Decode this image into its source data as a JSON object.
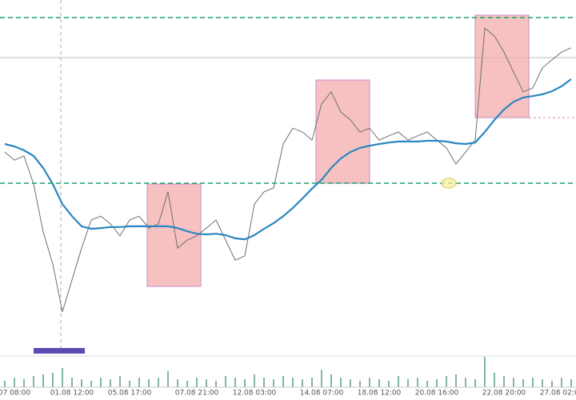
{
  "chart_data": {
    "type": "line",
    "categories": [
      null,
      "07 08:00",
      null,
      null,
      null,
      null,
      null,
      "01.08 12:00",
      null,
      null,
      null,
      null,
      null,
      "05.08 17:00",
      null,
      null,
      null,
      null,
      null,
      null,
      "07.08 21:00",
      null,
      null,
      null,
      null,
      null,
      "12.08 03:00",
      null,
      null,
      null,
      null,
      null,
      null,
      "14.08 07:00",
      null,
      null,
      null,
      null,
      null,
      "18.08 12:00",
      null,
      null,
      null,
      null,
      null,
      "20.08 16:00",
      null,
      null,
      null,
      null,
      null,
      null,
      "22.08 20:00",
      null,
      null,
      null,
      null,
      null,
      "27.08 02:00",
      null
    ],
    "series": [
      {
        "color": "#6f6f6f",
        "values": [
          56.8,
          54.5,
          55.7,
          47.7,
          34.1,
          25,
          11.4,
          20.5,
          29.5,
          37.5,
          38.6,
          36.4,
          33,
          37.5,
          38.6,
          35.2,
          36.4,
          45.5,
          29.5,
          31.8,
          33,
          35.2,
          37.5,
          31.8,
          26.1,
          27.3,
          42,
          45.5,
          46.6,
          59.1,
          63.6,
          62.5,
          60.2,
          70.5,
          73.9,
          68.2,
          65.9,
          62.5,
          63.6,
          60.2,
          61.4,
          62.5,
          60.2,
          61.4,
          62.5,
          60.2,
          58,
          53.4,
          56.8,
          60.2,
          92,
          89.8,
          85.2,
          79.5,
          73.9,
          75,
          80.7,
          83,
          85.2,
          86.4
        ]
      },
      {
        "color": "#2a86c0",
        "values": [
          59.1,
          58.4,
          57.3,
          55.7,
          52.3,
          47.7,
          42,
          38.6,
          35.7,
          35,
          35.2,
          35.5,
          35.5,
          35.7,
          35.7,
          35.7,
          35.7,
          35.7,
          35.2,
          34.3,
          33.6,
          33.4,
          33.6,
          33.2,
          32.3,
          32,
          33.2,
          35,
          36.6,
          38.6,
          40.9,
          43.6,
          46.4,
          48.9,
          52.3,
          55,
          56.8,
          58,
          58.6,
          59.1,
          59.5,
          59.8,
          59.8,
          59.8,
          60,
          60,
          59.8,
          59.3,
          59.1,
          59.5,
          62.5,
          65.9,
          68.9,
          71.1,
          72.3,
          72.7,
          73.2,
          74.1,
          75.5,
          77.5
        ]
      },
      {
        "type": "bar",
        "axis": "y2",
        "color": "#7fb8a4",
        "values": [
          20,
          30,
          25,
          35,
          40,
          45,
          60,
          30,
          25,
          20,
          30,
          25,
          35,
          20,
          30,
          25,
          30,
          50,
          25,
          20,
          30,
          25,
          20,
          35,
          30,
          25,
          40,
          30,
          25,
          35,
          30,
          25,
          30,
          55,
          40,
          30,
          25,
          20,
          30,
          25,
          20,
          35,
          25,
          30,
          20,
          25,
          35,
          40,
          30,
          25,
          95,
          45,
          35,
          30,
          25,
          30,
          25,
          20,
          30,
          25
        ]
      }
    ],
    "ylim": [
      0,
      100
    ],
    "y2lim": [
      0,
      100
    ]
  }
}
